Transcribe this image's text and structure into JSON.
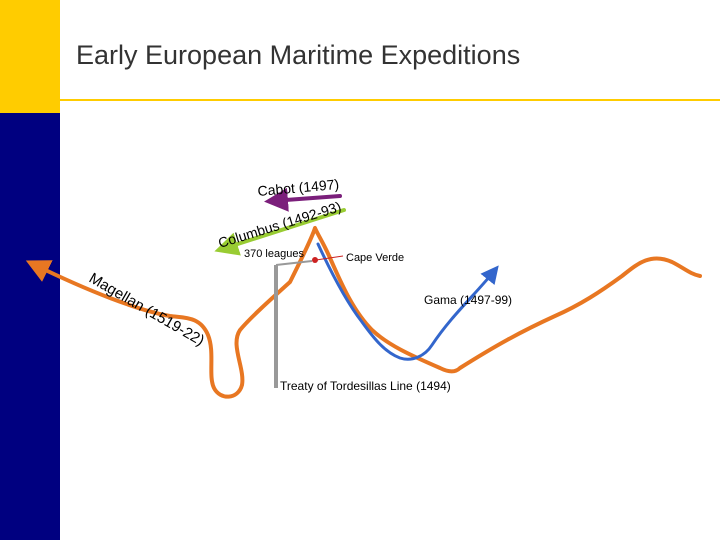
{
  "slide": {
    "title": "Early European Maritime Expeditions"
  },
  "labels": {
    "cabot": "Cabot (1497)",
    "columbus": "Columbus (1492-93)",
    "leagues": "370 leagues",
    "cape_verde": "Cape Verde",
    "gama": "Gama (1497-99)",
    "magellan": "Magellan (1519-22)",
    "tordesillas": "Treaty of Tordesillas Line (1494)"
  },
  "colors": {
    "cabot": "#7b1f7b",
    "columbus": "#99cc33",
    "gama": "#3366cc",
    "magellan": "#e87722",
    "tordesillas": "#999999",
    "cape_verde_marker": "#cc2222",
    "accent_yellow": "#ffcc00",
    "accent_navy": "#000080"
  }
}
